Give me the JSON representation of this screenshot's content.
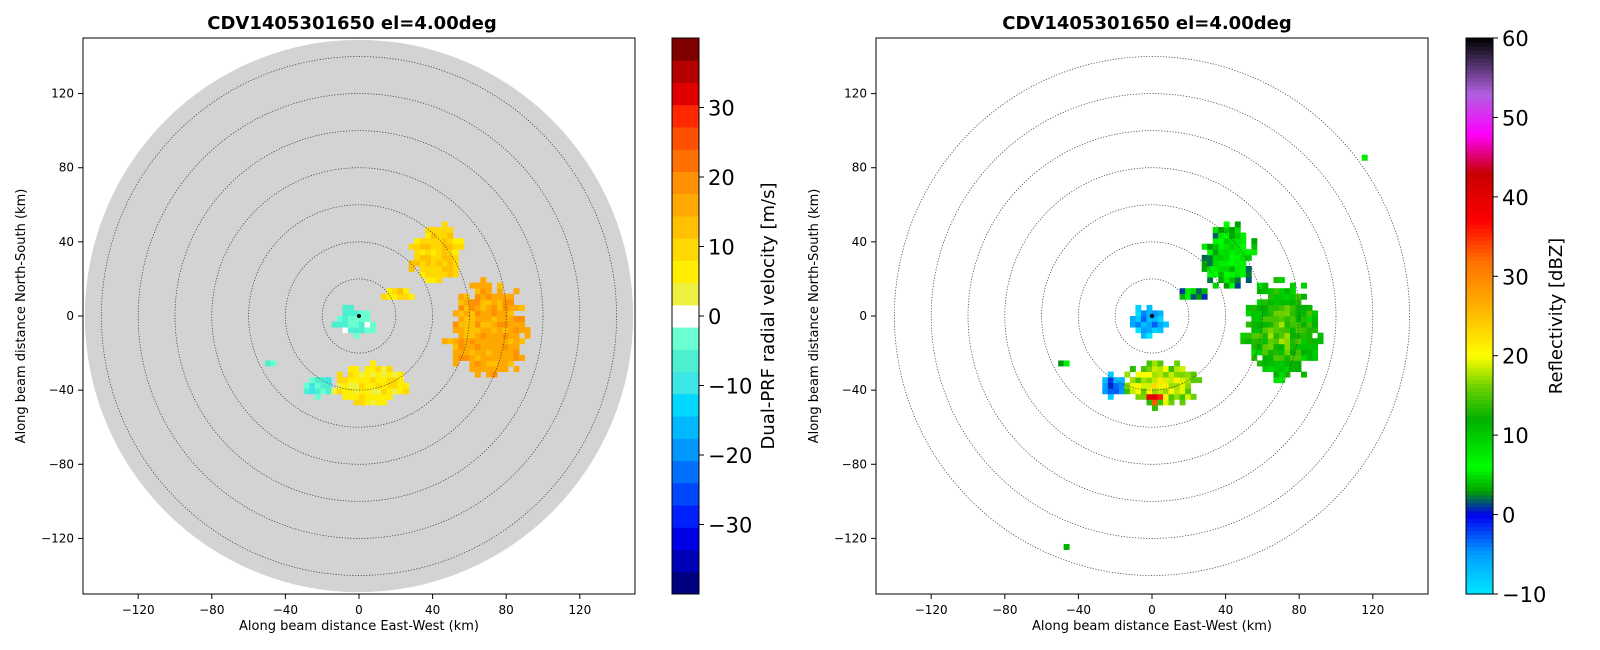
{
  "chart_data": [
    {
      "type": "heatmap",
      "title": "CDV1405301650 el=4.00deg",
      "xlabel": "Along beam distance East-West (km)",
      "ylabel": "Along beam distance North-South (km)",
      "xlim": [
        -150,
        150
      ],
      "ylim": [
        -150,
        150
      ],
      "xticks": [
        -120,
        -80,
        -40,
        0,
        40,
        80,
        120
      ],
      "yticks": [
        -120,
        -80,
        -40,
        0,
        40,
        80,
        120
      ],
      "range_rings_km": [
        20,
        40,
        60,
        80,
        100,
        120,
        140
      ],
      "max_range_km": 149,
      "background_disk": true,
      "grid": false,
      "colorbar": {
        "label": "Dual-PRF radial velocity [m/s]",
        "min": -40,
        "max": 40,
        "ticks": [
          -30,
          -20,
          -10,
          0,
          10,
          20,
          30
        ],
        "segments": 24,
        "colors": [
          "#000080",
          "#0000b8",
          "#0000e6",
          "#0020ff",
          "#0048ff",
          "#0070ff",
          "#0098ff",
          "#00b8ff",
          "#00d8ff",
          "#3ce6e6",
          "#4cf0d0",
          "#6affd2",
          "#ffffff",
          "#f0f040",
          "#ffee00",
          "#ffd800",
          "#ffc000",
          "#ffa800",
          "#ff9000",
          "#ff7000",
          "#ff5000",
          "#ff2800",
          "#e00000",
          "#b40000",
          "#800000"
        ]
      },
      "echo_regions": [
        {
          "name": "northeast cell",
          "center": [
            42,
            33
          ],
          "radius": [
            16,
            20
          ],
          "value": 10
        },
        {
          "name": "eastern cell",
          "center": [
            70,
            -8
          ],
          "radius": [
            24,
            30
          ],
          "value": 16
        },
        {
          "name": "southern band",
          "center": [
            5,
            -37
          ],
          "radius": [
            24,
            13
          ],
          "value": 7
        },
        {
          "name": "near-radar",
          "center": [
            -2,
            -3
          ],
          "radius": [
            13,
            9
          ],
          "value": -4
        },
        {
          "name": "southwest patch",
          "center": [
            -22,
            -38
          ],
          "radius": [
            9,
            7
          ],
          "value": -6
        },
        {
          "name": "western patch",
          "center": [
            -48,
            -25
          ],
          "radius": [
            3,
            3
          ],
          "value": -6
        },
        {
          "name": "connecting arm",
          "center": [
            22,
            12
          ],
          "radius": [
            10,
            4
          ],
          "value": 9
        }
      ]
    },
    {
      "type": "heatmap",
      "title": "CDV1405301650 el=4.00deg",
      "xlabel": "Along beam distance East-West (km)",
      "ylabel": "Along beam distance North-South (km)",
      "xlim": [
        -150,
        150
      ],
      "ylim": [
        -150,
        150
      ],
      "xticks": [
        -120,
        -80,
        -40,
        0,
        40,
        80,
        120
      ],
      "yticks": [
        -120,
        -80,
        -40,
        0,
        40,
        80,
        120
      ],
      "range_rings_km": [
        20,
        40,
        60,
        80,
        100,
        120,
        140
      ],
      "max_range_km": 140,
      "background_disk": false,
      "grid": false,
      "colorbar": {
        "label": "Reflectivity [dBZ]",
        "min": -10,
        "max": 60,
        "ticks": [
          -10,
          0,
          10,
          20,
          30,
          40,
          50,
          60
        ],
        "stops": [
          [
            -10,
            "#00e8ff"
          ],
          [
            -5,
            "#00a0ff"
          ],
          [
            0,
            "#0000f0"
          ],
          [
            3,
            "#00a000"
          ],
          [
            6,
            "#00ff00"
          ],
          [
            12,
            "#00b000"
          ],
          [
            16,
            "#6ad000"
          ],
          [
            20,
            "#ffff00"
          ],
          [
            26,
            "#ffb400"
          ],
          [
            32,
            "#ff7000"
          ],
          [
            37,
            "#ff0000"
          ],
          [
            43,
            "#c80000"
          ],
          [
            48,
            "#ff00ff"
          ],
          [
            53,
            "#b060e0"
          ],
          [
            58,
            "#302040"
          ],
          [
            60,
            "#000000"
          ]
        ]
      },
      "echo_regions": [
        {
          "name": "northeast cell",
          "center": [
            42,
            33
          ],
          "radius": [
            16,
            20
          ],
          "value": 6
        },
        {
          "name": "eastern cell",
          "center": [
            70,
            -8
          ],
          "radius": [
            24,
            30
          ],
          "value": 13
        },
        {
          "name": "southern band",
          "center": [
            5,
            -37
          ],
          "radius": [
            24,
            13
          ],
          "value": 18
        },
        {
          "name": "southern core",
          "center": [
            2,
            -43
          ],
          "radius": [
            9,
            5
          ],
          "value": 36
        },
        {
          "name": "near-radar",
          "center": [
            -2,
            -3
          ],
          "radius": [
            13,
            9
          ],
          "value": -6
        },
        {
          "name": "southwest patch",
          "center": [
            -22,
            -38
          ],
          "radius": [
            9,
            7
          ],
          "value": -4
        },
        {
          "name": "western patch",
          "center": [
            -48,
            -25
          ],
          "radius": [
            3,
            3
          ],
          "value": 5
        },
        {
          "name": "connecting arm",
          "center": [
            22,
            12
          ],
          "radius": [
            10,
            4
          ],
          "value": 3
        },
        {
          "name": "far northeast speck",
          "center": [
            116,
            86
          ],
          "radius": [
            2,
            2
          ],
          "value": 8
        },
        {
          "name": "far southwest speck",
          "center": [
            -46,
            -125
          ],
          "radius": [
            1.5,
            1.5
          ],
          "value": 6
        }
      ]
    }
  ]
}
